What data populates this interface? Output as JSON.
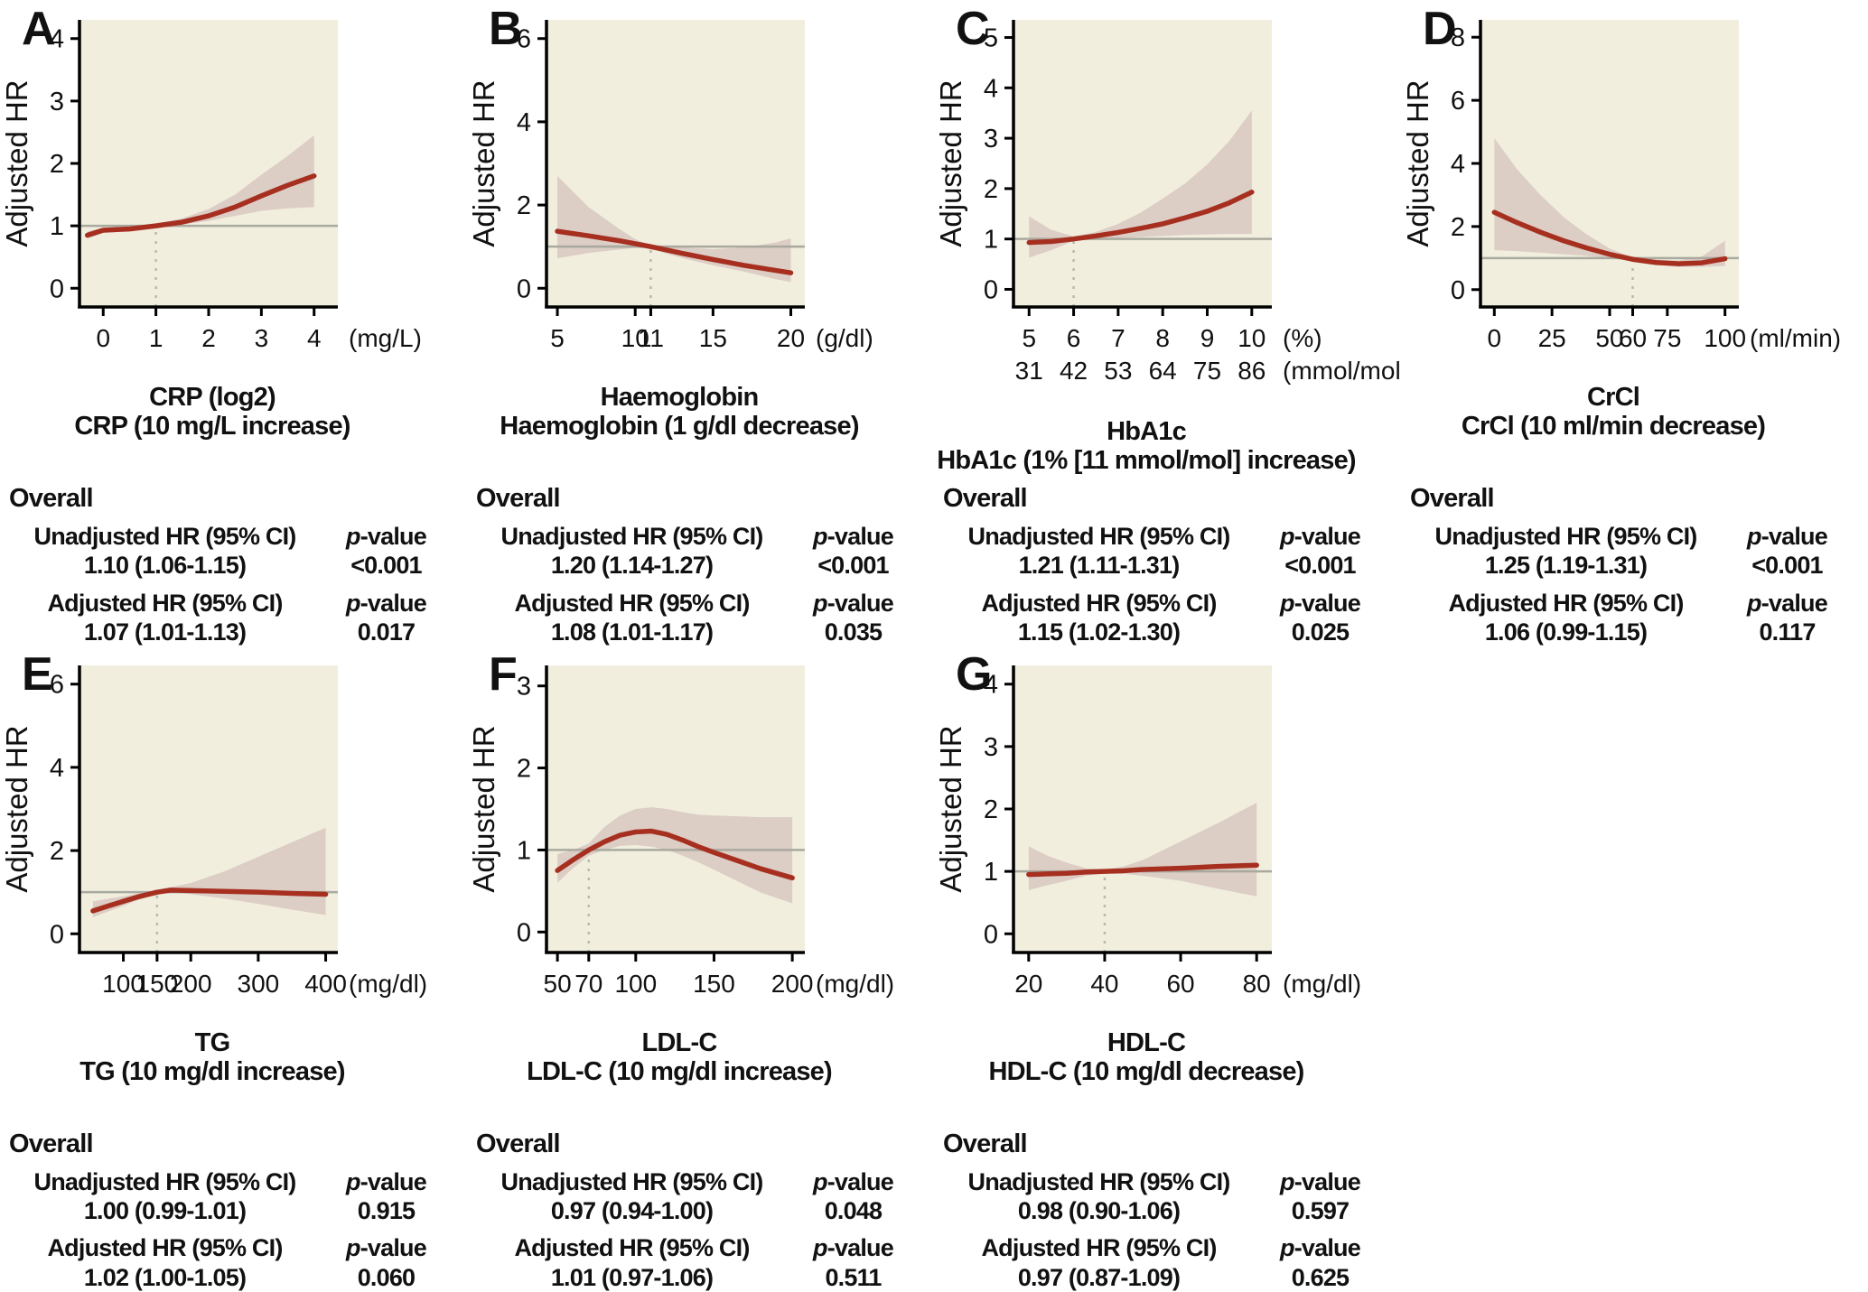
{
  "figure": {
    "y_axis_label": "Adjusted HR",
    "overall_label": "Overall",
    "p_label": "p-value"
  },
  "colors": {
    "plot_bg": "#f1eede",
    "band": "#dccdc5",
    "curve": "#a62f20",
    "ref_line": "#a9a99f",
    "dashed_line": "#b9b9b0",
    "axis": "#000000"
  },
  "chart_data": [
    {
      "type": "line",
      "letter": "A",
      "title_lines": [
        "CRP (log2)",
        "CRP (10 mg/L increase)"
      ],
      "x_unit": "(mg/L)",
      "xlim": [
        -0.45,
        4.45
      ],
      "ylim": [
        -0.3,
        4.3
      ],
      "x_ticks": {
        "values": [
          0,
          1,
          2,
          3,
          4
        ],
        "labels": [
          "0",
          "1",
          "2",
          "3",
          "4"
        ]
      },
      "y_ticks": [
        0,
        1,
        2,
        3,
        4
      ],
      "ref_hline": 1,
      "ref_vline": 1,
      "series": {
        "x": [
          -0.3,
          0,
          0.5,
          1,
          1.5,
          2,
          2.5,
          3,
          3.5,
          4
        ],
        "hr": [
          0.85,
          0.93,
          0.95,
          1.0,
          1.06,
          1.16,
          1.3,
          1.48,
          1.65,
          1.8
        ],
        "lo": [
          0.79,
          0.89,
          0.92,
          0.98,
          1.02,
          1.08,
          1.16,
          1.24,
          1.28,
          1.3
        ],
        "hi": [
          0.91,
          0.97,
          0.99,
          1.03,
          1.12,
          1.27,
          1.5,
          1.82,
          2.12,
          2.45
        ]
      },
      "table": {
        "rows": [
          {
            "label": "Unadjusted HR (95% CI)",
            "value": "1.10 (1.06-1.15)",
            "p": "<0.001"
          },
          {
            "label": "Adjusted HR (95% CI)",
            "value": "1.07 (1.01-1.13)",
            "p": "0.017"
          }
        ]
      }
    },
    {
      "type": "line",
      "letter": "B",
      "title_lines": [
        "Haemoglobin",
        "Haemoglobin (1 g/dl decrease)"
      ],
      "x_unit": "(g/dl)",
      "xlim": [
        4.3,
        20.9
      ],
      "ylim": [
        -0.45,
        6.45
      ],
      "x_ticks": {
        "values": [
          5,
          10,
          11,
          15,
          20
        ],
        "labels": [
          "5",
          "10",
          "11",
          "15",
          "20"
        ]
      },
      "y_ticks": [
        0,
        2,
        4,
        6
      ],
      "ref_hline": 1,
      "ref_vline": 11,
      "series": {
        "x": [
          5,
          7,
          9,
          10,
          11,
          12,
          13,
          15,
          17,
          19,
          20
        ],
        "hr": [
          1.37,
          1.26,
          1.14,
          1.07,
          1.0,
          0.92,
          0.84,
          0.69,
          0.55,
          0.43,
          0.37
        ],
        "lo": [
          0.72,
          0.85,
          0.93,
          0.97,
          0.96,
          0.83,
          0.73,
          0.55,
          0.4,
          0.22,
          0.15
        ],
        "hi": [
          2.7,
          1.95,
          1.42,
          1.18,
          1.04,
          1.0,
          0.98,
          0.94,
          0.98,
          1.1,
          1.2
        ]
      },
      "table": {
        "rows": [
          {
            "label": "Unadjusted HR (95% CI)",
            "value": "1.20 (1.14-1.27)",
            "p": "<0.001"
          },
          {
            "label": "Adjusted HR (95% CI)",
            "value": "1.08 (1.01-1.17)",
            "p": "0.035"
          }
        ]
      }
    },
    {
      "type": "line",
      "letter": "C",
      "title_lines": [
        "HbA1c",
        "HbA1c (1% [11 mmol/mol] increase)"
      ],
      "x_unit": "(%)",
      "xlim": [
        4.65,
        10.45
      ],
      "ylim": [
        -0.35,
        5.35
      ],
      "x_ticks": {
        "values": [
          5,
          6,
          7,
          8,
          9,
          10
        ],
        "labels": [
          "5",
          "6",
          "7",
          "8",
          "9",
          "10"
        ]
      },
      "x_ticks2": {
        "unit": "(mmol/mol)",
        "labels": [
          "31",
          "42",
          "53",
          "64",
          "75",
          "86"
        ]
      },
      "y_ticks": [
        0,
        1,
        2,
        3,
        4,
        5
      ],
      "ref_hline": 1,
      "ref_vline": 6,
      "series": {
        "x": [
          5,
          5.5,
          6,
          6.5,
          7,
          7.5,
          8,
          8.5,
          9,
          9.5,
          10
        ],
        "hr": [
          0.93,
          0.95,
          1.0,
          1.06,
          1.13,
          1.21,
          1.3,
          1.42,
          1.55,
          1.72,
          1.93
        ],
        "lo": [
          0.63,
          0.78,
          0.96,
          1.0,
          1.02,
          1.04,
          1.06,
          1.08,
          1.09,
          1.1,
          1.1
        ],
        "hi": [
          1.45,
          1.18,
          1.05,
          1.14,
          1.3,
          1.52,
          1.8,
          2.1,
          2.48,
          2.95,
          3.55
        ]
      },
      "table": {
        "rows": [
          {
            "label": "Unadjusted HR (95% CI)",
            "value": "1.21 (1.11-1.31)",
            "p": "<0.001"
          },
          {
            "label": "Adjusted HR (95% CI)",
            "value": "1.15 (1.02-1.30)",
            "p": "0.025"
          }
        ]
      }
    },
    {
      "type": "line",
      "letter": "D",
      "title_lines": [
        "CrCl",
        "CrCl (10 ml/min decrease)"
      ],
      "x_unit": "(ml/min)",
      "xlim": [
        -6,
        106
      ],
      "ylim": [
        -0.55,
        8.55
      ],
      "x_ticks": {
        "values": [
          0,
          25,
          50,
          60,
          75,
          100
        ],
        "labels": [
          "0",
          "25",
          "50",
          "60",
          "75",
          "100"
        ]
      },
      "y_ticks": [
        0,
        2,
        4,
        6,
        8
      ],
      "ref_hline": 1,
      "ref_vline": 60,
      "series": {
        "x": [
          0,
          10,
          20,
          30,
          40,
          50,
          60,
          70,
          80,
          90,
          100
        ],
        "hr": [
          2.45,
          2.12,
          1.82,
          1.55,
          1.32,
          1.12,
          0.96,
          0.86,
          0.82,
          0.85,
          0.98
        ],
        "lo": [
          1.25,
          1.22,
          1.17,
          1.12,
          1.07,
          1.0,
          0.9,
          0.78,
          0.72,
          0.72,
          0.75
        ],
        "hi": [
          4.8,
          3.8,
          3.0,
          2.3,
          1.75,
          1.3,
          1.02,
          0.95,
          0.93,
          1.05,
          1.55
        ]
      },
      "table": {
        "rows": [
          {
            "label": "Unadjusted HR (95% CI)",
            "value": "1.25 (1.19-1.31)",
            "p": "<0.001"
          },
          {
            "label": "Adjusted HR (95% CI)",
            "value": "1.06 (0.99-1.15)",
            "p": "0.117"
          }
        ]
      }
    },
    {
      "type": "line",
      "letter": "E",
      "title_lines": [
        "TG",
        "TG (10 mg/dl increase)"
      ],
      "x_unit": "(mg/dl)",
      "xlim": [
        35,
        418
      ],
      "ylim": [
        -0.45,
        6.45
      ],
      "x_ticks": {
        "values": [
          100,
          150,
          200,
          300,
          400
        ],
        "labels": [
          "100",
          "150",
          "200",
          "300",
          "400"
        ]
      },
      "y_ticks": [
        0,
        2,
        4,
        6
      ],
      "ref_hline": 1,
      "ref_vline": 150,
      "series": {
        "x": [
          55,
          80,
          100,
          120,
          150,
          170,
          200,
          250,
          300,
          350,
          400
        ],
        "hr": [
          0.55,
          0.68,
          0.78,
          0.88,
          1.0,
          1.05,
          1.04,
          1.02,
          1.0,
          0.97,
          0.95
        ],
        "lo": [
          0.4,
          0.55,
          0.67,
          0.8,
          0.96,
          1.0,
          0.95,
          0.85,
          0.72,
          0.58,
          0.45
        ],
        "hi": [
          0.78,
          0.85,
          0.9,
          0.96,
          1.04,
          1.12,
          1.22,
          1.5,
          1.85,
          2.2,
          2.55
        ]
      },
      "table": {
        "rows": [
          {
            "label": "Unadjusted HR (95% CI)",
            "value": "1.00 (0.99-1.01)",
            "p": "0.915"
          },
          {
            "label": "Adjusted HR (95% CI)",
            "value": "1.02 (1.00-1.05)",
            "p": "0.060"
          }
        ]
      }
    },
    {
      "type": "line",
      "letter": "F",
      "title_lines": [
        "LDL-C",
        "LDL-C (10 mg/dl increase)"
      ],
      "x_unit": "(mg/dl)",
      "xlim": [
        43,
        208
      ],
      "ylim": [
        -0.25,
        3.25
      ],
      "x_ticks": {
        "values": [
          50,
          70,
          100,
          150,
          200
        ],
        "labels": [
          "50",
          "70",
          "100",
          "150",
          "200"
        ]
      },
      "y_ticks": [
        0,
        1,
        2,
        3
      ],
      "ref_hline": 1,
      "ref_vline": 70,
      "series": {
        "x": [
          50,
          60,
          70,
          80,
          90,
          100,
          110,
          120,
          130,
          140,
          150,
          165,
          180,
          200
        ],
        "hr": [
          0.75,
          0.88,
          1.0,
          1.1,
          1.18,
          1.22,
          1.23,
          1.19,
          1.12,
          1.04,
          0.97,
          0.87,
          0.77,
          0.66
        ],
        "lo": [
          0.6,
          0.78,
          0.93,
          1.0,
          1.05,
          1.06,
          1.04,
          1.0,
          0.93,
          0.85,
          0.76,
          0.62,
          0.48,
          0.35
        ],
        "hi": [
          0.95,
          1.0,
          1.08,
          1.28,
          1.42,
          1.5,
          1.52,
          1.5,
          1.46,
          1.43,
          1.42,
          1.41,
          1.4,
          1.4
        ]
      },
      "table": {
        "rows": [
          {
            "label": "Unadjusted HR (95% CI)",
            "value": "0.97 (0.94-1.00)",
            "p": "0.048"
          },
          {
            "label": "Adjusted HR (95% CI)",
            "value": "1.01 (0.97-1.06)",
            "p": "0.511"
          }
        ]
      }
    },
    {
      "type": "line",
      "letter": "G",
      "title_lines": [
        "HDL-C",
        "HDL-C (10 mg/dl decrease)"
      ],
      "x_unit": "(mg/dl)",
      "xlim": [
        16,
        84
      ],
      "ylim": [
        -0.3,
        4.3
      ],
      "x_ticks": {
        "values": [
          20,
          40,
          60,
          80
        ],
        "labels": [
          "20",
          "40",
          "60",
          "80"
        ]
      },
      "y_ticks": [
        0,
        1,
        2,
        3,
        4
      ],
      "ref_hline": 1,
      "ref_vline": 40,
      "series": {
        "x": [
          20,
          25,
          30,
          35,
          40,
          45,
          50,
          60,
          70,
          80
        ],
        "hr": [
          0.95,
          0.96,
          0.97,
          0.99,
          1.0,
          1.01,
          1.03,
          1.05,
          1.08,
          1.1
        ],
        "lo": [
          0.7,
          0.78,
          0.85,
          0.93,
          0.97,
          0.96,
          0.93,
          0.85,
          0.72,
          0.6
        ],
        "hi": [
          1.4,
          1.25,
          1.14,
          1.05,
          1.03,
          1.08,
          1.18,
          1.48,
          1.78,
          2.1
        ]
      },
      "table": {
        "rows": [
          {
            "label": "Unadjusted HR (95% CI)",
            "value": "0.98 (0.90-1.06)",
            "p": "0.597"
          },
          {
            "label": "Adjusted HR (95% CI)",
            "value": "0.97 (0.87-1.09)",
            "p": "0.625"
          }
        ]
      }
    }
  ]
}
